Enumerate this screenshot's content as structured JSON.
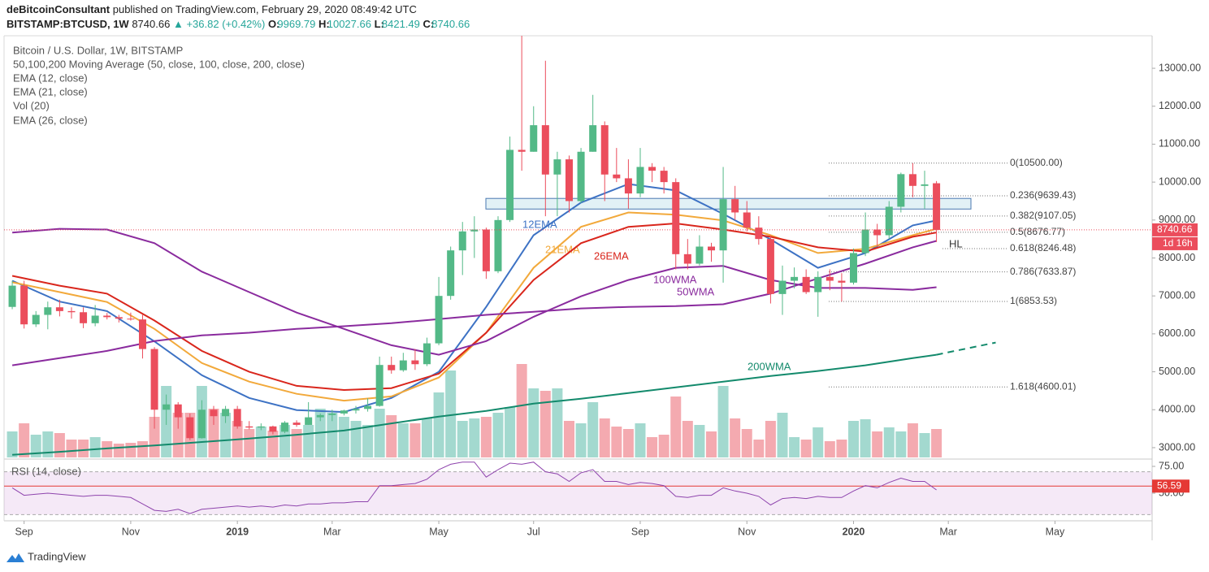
{
  "header": {
    "author": "deBitcoinConsultant",
    "published": "published on TradingView.com, February 29, 2020 08:49:42 UTC",
    "symbol": "BITSTAMP:BTCUSD, 1W",
    "arrow": "▲",
    "change": "+36.82 (+0.42%)",
    "ohlc_labels": [
      "O:",
      "H:",
      "L:",
      "C:"
    ],
    "legend": [
      "Bitcoin / U.S. Dollar, 1W, BITSTAMP",
      "50,100,200 Moving Average (50, close, 100, close, 200, close)",
      "EMA (12, close)",
      "EMA (21, close)",
      "Vol (20)",
      "EMA (26, close)"
    ]
  },
  "footer": "TradingView",
  "chart_data": {
    "type": "candlestick",
    "up_color": "#53b987",
    "down_color": "#eb4d5c",
    "volume_up_color": "#a3d9cf",
    "volume_down_color": "#f4aab0",
    "xlim": [
      -0.69,
      96.2
    ],
    "xticks": [
      {
        "value": 1,
        "label": "Sep"
      },
      {
        "value": 10,
        "label": "Nov"
      },
      {
        "value": 19,
        "label": "2019"
      },
      {
        "value": 27,
        "label": "Mar"
      },
      {
        "value": 36,
        "label": "May"
      },
      {
        "value": 44,
        "label": "Jul"
      },
      {
        "value": 53,
        "label": "Sep"
      },
      {
        "value": 62,
        "label": "Nov"
      },
      {
        "value": 71,
        "label": "2020"
      },
      {
        "value": 79,
        "label": "Mar"
      },
      {
        "value": 88,
        "label": "May"
      }
    ],
    "ylim": [
      2742,
      13858
    ],
    "yticks": [
      {
        "value": 3000,
        "label": "3000.00"
      },
      {
        "value": 4000,
        "label": "4000.00"
      },
      {
        "value": 5000,
        "label": "5000.00"
      },
      {
        "value": 6000,
        "label": "6000.00"
      },
      {
        "value": 7000,
        "label": "7000.00"
      },
      {
        "value": 8000,
        "label": "8000.00"
      },
      {
        "value": 9000,
        "label": "9000.00"
      },
      {
        "value": 10000,
        "label": "10000.00"
      },
      {
        "value": 11000,
        "label": "11000.00"
      },
      {
        "value": 12000,
        "label": "12000.00"
      },
      {
        "value": 13000,
        "label": "13000.00"
      }
    ],
    "open": [
      6710,
      7270,
      6250,
      6500,
      6700,
      6600,
      6570,
      6280,
      6480,
      6440,
      6400,
      6380,
      5600,
      4000,
      4140,
      3800,
      3250,
      4000,
      3830,
      4020,
      3560,
      3530,
      3560,
      3420,
      3660,
      3600,
      3800,
      3860,
      3900,
      3980,
      4020,
      4100,
      5180,
      5040,
      5300,
      5200,
      5750,
      7000,
      8200,
      8700,
      8750,
      7650,
      9000,
      10850,
      10800,
      11500,
      10200,
      10600,
      9500,
      10800,
      11500,
      10200,
      10100,
      9700,
      10400,
      10300,
      10000,
      8100,
      7850,
      8300,
      8200,
      9550,
      9200,
      8800,
      8500,
      7050,
      7400,
      7500,
      7100,
      7500,
      7400,
      7350,
      8130,
      8750,
      8600,
      9350,
      10210,
      9900,
      9969.79
    ],
    "high": [
      7400,
      7400,
      6600,
      6850,
      6900,
      6700,
      6700,
      6760,
      6550,
      6500,
      6560,
      6500,
      5650,
      4400,
      4200,
      3900,
      4250,
      4100,
      4100,
      4100,
      3700,
      3640,
      3580,
      3700,
      3720,
      4200,
      3900,
      4000,
      4000,
      4100,
      4300,
      5400,
      5400,
      5500,
      5600,
      5900,
      7500,
      8300,
      8950,
      9100,
      8800,
      9100,
      11200,
      13880,
      12000,
      13200,
      10800,
      10700,
      10900,
      12300,
      11600,
      10900,
      10600,
      10900,
      10500,
      10400,
      10100,
      8500,
      8600,
      8400,
      10400,
      9900,
      9500,
      9100,
      8600,
      7800,
      7750,
      7700,
      7650,
      7700,
      7600,
      8250,
      9200,
      8900,
      9500,
      10250,
      10500,
      10300,
      10027.66
    ],
    "low": [
      6650,
      6140,
      6180,
      6120,
      6460,
      6400,
      6150,
      6200,
      6380,
      6300,
      6350,
      5350,
      3500,
      3600,
      3500,
      3200,
      3240,
      3600,
      3650,
      3500,
      3480,
      3460,
      3350,
      3380,
      3550,
      3600,
      3700,
      3700,
      3850,
      3900,
      3950,
      4080,
      4950,
      5000,
      5050,
      5150,
      5700,
      6900,
      7550,
      8000,
      7450,
      7600,
      8950,
      10300,
      10800,
      9100,
      9100,
      9200,
      9450,
      10800,
      9500,
      10000,
      9300,
      9600,
      10000,
      9700,
      7700,
      7700,
      7800,
      7900,
      7350,
      9000,
      8700,
      8350,
      6800,
      6500,
      7200,
      7050,
      6450,
      7150,
      6850,
      7300,
      8050,
      8300,
      8500,
      9200,
      9600,
      9300,
      8421.49
    ],
    "close": [
      7270,
      6250,
      6500,
      6700,
      6600,
      6570,
      6280,
      6480,
      6440,
      6400,
      6380,
      5600,
      4000,
      4140,
      3800,
      3250,
      4000,
      3830,
      4020,
      3560,
      3530,
      3560,
      3420,
      3660,
      3600,
      3800,
      3860,
      3900,
      3980,
      4020,
      4100,
      5180,
      5040,
      5300,
      5200,
      5750,
      7000,
      8200,
      8700,
      8750,
      7650,
      9000,
      10850,
      10800,
      11500,
      10200,
      10600,
      9500,
      10800,
      11500,
      10200,
      10100,
      9700,
      10400,
      10300,
      10000,
      8100,
      7850,
      8300,
      8200,
      9550,
      9200,
      8800,
      8500,
      7050,
      7400,
      7500,
      7100,
      7500,
      7400,
      7350,
      8130,
      8750,
      8600,
      9350,
      10210,
      9900,
      9940,
      8740.66
    ],
    "volume": [
      32,
      42,
      28,
      32,
      30,
      22,
      22,
      25,
      20,
      17,
      18,
      20,
      50,
      88,
      55,
      55,
      88,
      60,
      55,
      45,
      35,
      38,
      33,
      40,
      35,
      40,
      60,
      55,
      50,
      45,
      40,
      60,
      52,
      42,
      42,
      48,
      80,
      107,
      45,
      48,
      50,
      55,
      62,
      115,
      85,
      82,
      85,
      45,
      42,
      68,
      48,
      38,
      35,
      42,
      25,
      28,
      75,
      45,
      40,
      32,
      88,
      48,
      35,
      22,
      45,
      55,
      25,
      22,
      37,
      20,
      22,
      45,
      47,
      32,
      37,
      32,
      42,
      30,
      35
    ],
    "series": [
      {
        "name": "12EMA",
        "color": "#3d72c4",
        "x": [
          0,
          4,
          8,
          12,
          16,
          20,
          24,
          28,
          32,
          36,
          40,
          44,
          48,
          52,
          56,
          60,
          64,
          68,
          72,
          76,
          78
        ],
        "values": [
          7400,
          6850,
          6600,
          5800,
          4910,
          4310,
          3990,
          3940,
          4310,
          5000,
          6710,
          8600,
          9460,
          9950,
          9780,
          9160,
          8490,
          7740,
          8130,
          8860,
          8990
        ]
      },
      {
        "name": "21EMA",
        "color": "#f2a93b",
        "x": [
          0,
          4,
          8,
          12,
          16,
          20,
          24,
          28,
          32,
          36,
          40,
          44,
          48,
          52,
          56,
          60,
          64,
          68,
          72,
          76,
          78
        ],
        "values": [
          7360,
          7100,
          6840,
          6130,
          5230,
          4740,
          4420,
          4240,
          4350,
          4850,
          6030,
          7740,
          8820,
          9200,
          9140,
          8990,
          8600,
          8130,
          8240,
          8600,
          8770
        ]
      },
      {
        "name": "26EMA",
        "color": "#d9261c",
        "x": [
          0,
          4,
          8,
          12,
          16,
          20,
          24,
          28,
          32,
          36,
          40,
          44,
          48,
          52,
          56,
          60,
          64,
          68,
          72,
          76,
          78
        ],
        "values": [
          7530,
          7270,
          7060,
          6350,
          5550,
          5000,
          4630,
          4520,
          4570,
          4950,
          6030,
          7420,
          8390,
          8820,
          8910,
          8750,
          8560,
          8280,
          8170,
          8560,
          8670
        ]
      },
      {
        "name": "100WMA",
        "color": "#8a2b9e",
        "x": [
          0,
          4,
          8,
          12,
          16,
          20,
          24,
          28,
          32,
          36,
          40,
          44,
          48,
          52,
          56,
          60,
          64,
          68,
          72,
          76,
          78
        ],
        "values": [
          8670,
          8770,
          8750,
          8390,
          7640,
          7100,
          6560,
          6130,
          5700,
          5450,
          5810,
          6450,
          6990,
          7420,
          7740,
          7790,
          7420,
          7210,
          7210,
          7160,
          7230
        ]
      },
      {
        "name": "50WMA",
        "color": "#8a2b9e",
        "x": [
          0,
          4,
          8,
          12,
          16,
          20,
          24,
          28,
          32,
          36,
          40,
          44,
          48,
          52,
          56,
          60,
          64,
          68,
          72,
          76,
          78
        ],
        "values": [
          5170,
          5360,
          5550,
          5810,
          5960,
          6030,
          6130,
          6200,
          6280,
          6390,
          6500,
          6580,
          6670,
          6710,
          6730,
          6780,
          7060,
          7460,
          7850,
          8280,
          8450
        ]
      },
      {
        "name": "200WMA",
        "color": "#138a6c",
        "x": [
          0,
          4,
          8,
          12,
          16,
          20,
          24,
          28,
          32,
          36,
          40,
          44,
          48,
          52,
          56,
          60,
          64,
          68,
          72,
          76,
          78
        ],
        "values": [
          2810,
          2890,
          2980,
          3060,
          3150,
          3240,
          3340,
          3450,
          3640,
          3820,
          3970,
          4160,
          4290,
          4440,
          4590,
          4740,
          4890,
          5020,
          5170,
          5360,
          5450
        ],
        "projection": {
          "x": [
            78,
            83
          ],
          "values": [
            5450,
            5770
          ]
        }
      }
    ],
    "zone": [
      9290,
      9570
    ],
    "fib_levels": [
      {
        "value": 10500,
        "label": "0(10500.00)"
      },
      {
        "value": 9639.43,
        "label": "0.236(9639.43)"
      },
      {
        "value": 9107.05,
        "label": "0.382(9107.05)"
      },
      {
        "value": 8676.77,
        "label": "0.5(8676.77)"
      },
      {
        "value": 8246.48,
        "label": "0.618(8246.48)"
      },
      {
        "value": 7633.87,
        "label": "0.786(7633.87)"
      },
      {
        "value": 6853.53,
        "label": "1(6853.53)"
      },
      {
        "value": 4600.01,
        "label": "1.618(4600.01)"
      }
    ],
    "annotations": [
      "HL"
    ],
    "countdown": "1d 16h",
    "rsi": {
      "title": "RSI (14, close)",
      "ylim": [
        26.5,
        80.3
      ],
      "yticks": [
        {
          "value": 75,
          "label": "75.00"
        },
        {
          "value": 50,
          "label": "50.00"
        }
      ],
      "band": [
        30,
        70
      ],
      "level": 56.59,
      "color": "#8e44ad",
      "values": [
        55,
        48,
        49,
        50,
        49,
        48,
        47,
        48,
        48,
        47,
        46,
        40,
        34,
        33,
        35,
        31,
        35,
        36,
        37,
        38,
        37,
        38,
        37,
        39,
        38,
        40,
        40,
        41,
        41,
        42,
        42,
        57,
        57,
        58,
        59,
        63,
        72,
        77,
        79,
        79,
        65,
        72,
        78,
        77,
        79,
        70,
        68,
        61,
        69,
        72,
        61,
        61,
        58,
        60,
        59,
        57,
        47,
        46,
        48,
        48,
        55,
        52,
        50,
        47,
        39,
        45,
        46,
        45,
        47,
        46,
        46,
        52,
        57,
        55,
        60,
        64,
        61,
        61,
        53
      ]
    }
  }
}
